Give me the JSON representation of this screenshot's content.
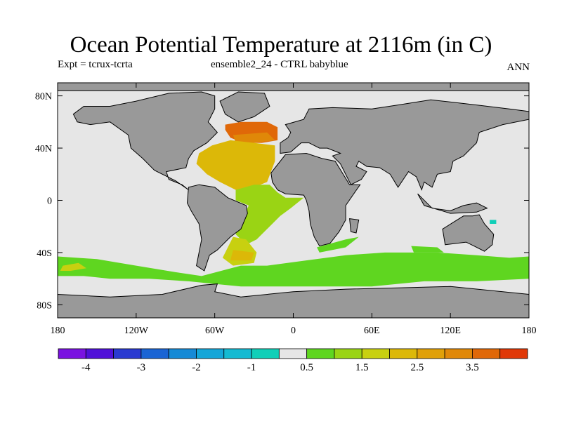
{
  "title": "Ocean Potential Temperature at 2116m (in C)",
  "subtitle_left": "Expt = tcrux-tcrta",
  "subtitle_center": "ensemble2_24 - CTRL babyblue",
  "subtitle_right": "ANN",
  "colors": {
    "land": "#999999",
    "coastline": "#000000",
    "near_zero": "#e6e6e6"
  },
  "chart_data": {
    "type": "heatmap",
    "map_extent": {
      "lon": [
        -180,
        180
      ],
      "lat": [
        -90,
        90
      ]
    },
    "x_ticks": [
      {
        "value": -180,
        "label": "180"
      },
      {
        "value": -120,
        "label": "120W"
      },
      {
        "value": -60,
        "label": "60W"
      },
      {
        "value": 0,
        "label": "0"
      },
      {
        "value": 60,
        "label": "60E"
      },
      {
        "value": 120,
        "label": "120E"
      },
      {
        "value": 180,
        "label": "180"
      }
    ],
    "y_ticks": [
      {
        "value": 80,
        "label": "80N"
      },
      {
        "value": 40,
        "label": "40N"
      },
      {
        "value": 0,
        "label": "0"
      },
      {
        "value": -40,
        "label": "40S"
      },
      {
        "value": -80,
        "label": "80S"
      }
    ],
    "colorbar": {
      "boundaries": [
        -4.5,
        -4,
        -3.5,
        -3,
        -2.5,
        -2,
        -1.5,
        -1,
        -0.5,
        0.5,
        1,
        1.5,
        2,
        2.5,
        3,
        3.5,
        4,
        4.5
      ],
      "colors": [
        "#7a12e0",
        "#5010d8",
        "#2a3ad0",
        "#1a64d4",
        "#168ad6",
        "#14a6d8",
        "#14bad2",
        "#10cfb8",
        "#e6e6e6",
        "#5fd620",
        "#9ad414",
        "#c8d010",
        "#dcb808",
        "#e0a008",
        "#e08808",
        "#e06808",
        "#e03808"
      ],
      "labels": [
        {
          "value": -4,
          "label": "-4"
        },
        {
          "value": -3,
          "label": "-3"
        },
        {
          "value": -2,
          "label": "-2"
        },
        {
          "value": -1,
          "label": "-1"
        },
        {
          "value": 0.5,
          "label": "0.5"
        },
        {
          "value": 1.5,
          "label": "1.5"
        },
        {
          "value": 2.5,
          "label": "2.5"
        },
        {
          "value": 3.5,
          "label": "3.5"
        }
      ]
    },
    "regions": [
      {
        "name": "north-atlantic-subpolar",
        "value": 3.8,
        "poly": [
          [
            -52,
            58
          ],
          [
            -40,
            60
          ],
          [
            -20,
            60
          ],
          [
            -12,
            56
          ],
          [
            -12,
            46
          ],
          [
            -24,
            44
          ],
          [
            -38,
            44
          ],
          [
            -48,
            48
          ],
          [
            -52,
            54
          ]
        ]
      },
      {
        "name": "north-atlantic-warm-core",
        "value": 3.2,
        "poly": [
          [
            -46,
            50
          ],
          [
            -20,
            52
          ],
          [
            -14,
            46
          ],
          [
            -30,
            44
          ],
          [
            -44,
            44
          ]
        ]
      },
      {
        "name": "north-atlantic-subtropical",
        "value": 2.2,
        "poly": [
          [
            -72,
            36
          ],
          [
            -62,
            42
          ],
          [
            -48,
            46
          ],
          [
            -30,
            44
          ],
          [
            -14,
            42
          ],
          [
            -14,
            30
          ],
          [
            -20,
            14
          ],
          [
            -30,
            10
          ],
          [
            -44,
            8
          ],
          [
            -56,
            14
          ],
          [
            -66,
            20
          ],
          [
            -74,
            28
          ]
        ]
      },
      {
        "name": "equatorial-atlantic",
        "value": 1.2,
        "poly": [
          [
            -44,
            8
          ],
          [
            -30,
            12
          ],
          [
            -18,
            12
          ],
          [
            -12,
            6
          ],
          [
            -6,
            2
          ],
          [
            8,
            2
          ],
          [
            -2,
            -6
          ],
          [
            -10,
            -12
          ],
          [
            -20,
            -22
          ],
          [
            -28,
            -30
          ],
          [
            -36,
            -34
          ],
          [
            -44,
            -26
          ],
          [
            -38,
            -12
          ],
          [
            -34,
            -4
          ],
          [
            -44,
            0
          ]
        ]
      },
      {
        "name": "south-atlantic-west",
        "value": 1.5,
        "poly": [
          [
            -46,
            -28
          ],
          [
            -36,
            -30
          ],
          [
            -28,
            -40
          ],
          [
            -30,
            -48
          ],
          [
            -46,
            -50
          ],
          [
            -54,
            -44
          ],
          [
            -50,
            -36
          ]
        ]
      },
      {
        "name": "south-atlantic-core",
        "value": 2.2,
        "poly": [
          [
            -46,
            -38
          ],
          [
            -30,
            -40
          ],
          [
            -32,
            -46
          ],
          [
            -48,
            -46
          ]
        ]
      },
      {
        "name": "southern-ocean-band",
        "value": 0.9,
        "poly": [
          [
            -180,
            -43
          ],
          [
            -150,
            -45
          ],
          [
            -120,
            -50
          ],
          [
            -90,
            -55
          ],
          [
            -70,
            -58
          ],
          [
            -40,
            -50
          ],
          [
            -20,
            -50
          ],
          [
            10,
            -46
          ],
          [
            40,
            -42
          ],
          [
            70,
            -40
          ],
          [
            110,
            -40
          ],
          [
            140,
            -42
          ],
          [
            165,
            -44
          ],
          [
            180,
            -43
          ],
          [
            180,
            -60
          ],
          [
            140,
            -62
          ],
          [
            100,
            -62
          ],
          [
            60,
            -66
          ],
          [
            20,
            -66
          ],
          [
            -10,
            -66
          ],
          [
            -40,
            -66
          ],
          [
            -60,
            -64
          ],
          [
            -80,
            -62
          ],
          [
            -110,
            -60
          ],
          [
            -140,
            -60
          ],
          [
            -160,
            -58
          ],
          [
            -180,
            -58
          ]
        ]
      },
      {
        "name": "south-pacific-warm-patch",
        "value": 1.5,
        "poly": [
          [
            -176,
            -50
          ],
          [
            -164,
            -48
          ],
          [
            -158,
            -52
          ],
          [
            -170,
            -54
          ],
          [
            -178,
            -54
          ]
        ]
      },
      {
        "name": "south-indian-streak",
        "value": 0.9,
        "poly": [
          [
            18,
            -36
          ],
          [
            40,
            -30
          ],
          [
            50,
            -28
          ],
          [
            40,
            -36
          ],
          [
            20,
            -40
          ]
        ]
      },
      {
        "name": "south-indian-offshore",
        "value": 0.9,
        "poly": [
          [
            90,
            -35
          ],
          [
            110,
            -36
          ],
          [
            115,
            -40
          ],
          [
            92,
            -40
          ]
        ]
      },
      {
        "name": "west-pacific-cold-spot",
        "value": -0.8,
        "poly": [
          [
            150,
            -15
          ],
          [
            155,
            -15
          ],
          [
            155,
            -18
          ],
          [
            150,
            -18
          ]
        ]
      }
    ],
    "land": [
      {
        "name": "north-america",
        "poly": [
          [
            -168,
            66
          ],
          [
            -160,
            72
          ],
          [
            -140,
            72
          ],
          [
            -120,
            76
          ],
          [
            -95,
            82
          ],
          [
            -70,
            83
          ],
          [
            -60,
            80
          ],
          [
            -60,
            70
          ],
          [
            -65,
            60
          ],
          [
            -58,
            52
          ],
          [
            -66,
            44
          ],
          [
            -76,
            38
          ],
          [
            -80,
            32
          ],
          [
            -82,
            25
          ],
          [
            -97,
            22
          ],
          [
            -95,
            16
          ],
          [
            -85,
            12
          ],
          [
            -80,
            8
          ],
          [
            -90,
            15
          ],
          [
            -106,
            23
          ],
          [
            -115,
            32
          ],
          [
            -124,
            40
          ],
          [
            -126,
            50
          ],
          [
            -140,
            60
          ],
          [
            -155,
            58
          ],
          [
            -165,
            60
          ]
        ]
      },
      {
        "name": "greenland",
        "poly": [
          [
            -56,
            76
          ],
          [
            -42,
            83
          ],
          [
            -22,
            82
          ],
          [
            -18,
            72
          ],
          [
            -30,
            64
          ],
          [
            -42,
            60
          ],
          [
            -52,
            66
          ]
        ]
      },
      {
        "name": "south-america",
        "poly": [
          [
            -80,
            10
          ],
          [
            -72,
            12
          ],
          [
            -60,
            10
          ],
          [
            -50,
            2
          ],
          [
            -36,
            -4
          ],
          [
            -35,
            -10
          ],
          [
            -40,
            -22
          ],
          [
            -48,
            -28
          ],
          [
            -58,
            -38
          ],
          [
            -64,
            -42
          ],
          [
            -68,
            -54
          ],
          [
            -74,
            -50
          ],
          [
            -72,
            -40
          ],
          [
            -70,
            -30
          ],
          [
            -72,
            -18
          ],
          [
            -78,
            -8
          ],
          [
            -81,
            -2
          ]
        ]
      },
      {
        "name": "eurasia",
        "poly": [
          [
            -10,
            36
          ],
          [
            -10,
            44
          ],
          [
            -4,
            48
          ],
          [
            -2,
            52
          ],
          [
            -6,
            58
          ],
          [
            8,
            62
          ],
          [
            12,
            70
          ],
          [
            30,
            71
          ],
          [
            60,
            70
          ],
          [
            80,
            73
          ],
          [
            105,
            77
          ],
          [
            140,
            73
          ],
          [
            165,
            70
          ],
          [
            180,
            68
          ],
          [
            180,
            62
          ],
          [
            160,
            58
          ],
          [
            142,
            52
          ],
          [
            140,
            44
          ],
          [
            130,
            34
          ],
          [
            122,
            30
          ],
          [
            120,
            22
          ],
          [
            110,
            20
          ],
          [
            106,
            10
          ],
          [
            100,
            14
          ],
          [
            98,
            8
          ],
          [
            94,
            18
          ],
          [
            88,
            22
          ],
          [
            80,
            10
          ],
          [
            74,
            20
          ],
          [
            66,
            25
          ],
          [
            56,
            26
          ],
          [
            50,
            30
          ],
          [
            48,
            26
          ],
          [
            56,
            22
          ],
          [
            52,
            16
          ],
          [
            44,
            12
          ],
          [
            36,
            28
          ],
          [
            30,
            34
          ],
          [
            36,
            36
          ],
          [
            26,
            40
          ],
          [
            20,
            40
          ],
          [
            12,
            44
          ],
          [
            6,
            44
          ],
          [
            -2,
            37
          ]
        ]
      },
      {
        "name": "africa",
        "poly": [
          [
            -17,
            21
          ],
          [
            -16,
            14
          ],
          [
            -12,
            8
          ],
          [
            -6,
            5
          ],
          [
            8,
            4
          ],
          [
            10,
            0
          ],
          [
            12,
            -8
          ],
          [
            13,
            -18
          ],
          [
            16,
            -28
          ],
          [
            20,
            -35
          ],
          [
            28,
            -33
          ],
          [
            35,
            -24
          ],
          [
            40,
            -15
          ],
          [
            40,
            -4
          ],
          [
            51,
            12
          ],
          [
            43,
            12
          ],
          [
            32,
            30
          ],
          [
            22,
            32
          ],
          [
            10,
            36
          ],
          [
            -6,
            35
          ]
        ]
      },
      {
        "name": "madagascar",
        "poly": [
          [
            43,
            -14
          ],
          [
            50,
            -15
          ],
          [
            48,
            -25
          ],
          [
            44,
            -24
          ]
        ]
      },
      {
        "name": "australia",
        "poly": [
          [
            114,
            -22
          ],
          [
            122,
            -17
          ],
          [
            130,
            -12
          ],
          [
            137,
            -12
          ],
          [
            142,
            -11
          ],
          [
            146,
            -18
          ],
          [
            153,
            -26
          ],
          [
            152,
            -34
          ],
          [
            146,
            -39
          ],
          [
            138,
            -35
          ],
          [
            132,
            -32
          ],
          [
            116,
            -34
          ]
        ]
      },
      {
        "name": "indonesia",
        "poly": [
          [
            95,
            5
          ],
          [
            106,
            -6
          ],
          [
            120,
            -8
          ],
          [
            130,
            -4
          ],
          [
            140,
            -2
          ],
          [
            148,
            -6
          ],
          [
            140,
            -9
          ],
          [
            120,
            -10
          ],
          [
            100,
            -4
          ]
        ]
      },
      {
        "name": "antarctica",
        "poly": [
          [
            -180,
            -72
          ],
          [
            -140,
            -74
          ],
          [
            -100,
            -72
          ],
          [
            -70,
            -65
          ],
          [
            -58,
            -64
          ],
          [
            -60,
            -70
          ],
          [
            -40,
            -74
          ],
          [
            0,
            -70
          ],
          [
            40,
            -68
          ],
          [
            80,
            -67
          ],
          [
            120,
            -66
          ],
          [
            160,
            -70
          ],
          [
            180,
            -72
          ],
          [
            180,
            -90
          ],
          [
            -180,
            -90
          ]
        ]
      },
      {
        "name": "arctic-rim",
        "poly": [
          [
            -180,
            90
          ],
          [
            180,
            90
          ],
          [
            180,
            84
          ],
          [
            -180,
            84
          ]
        ]
      }
    ]
  }
}
